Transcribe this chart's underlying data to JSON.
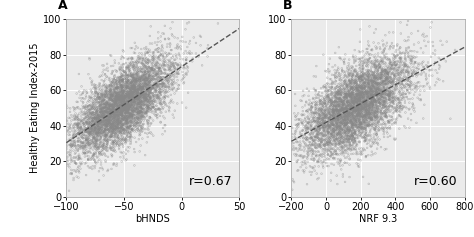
{
  "panel_A": {
    "label": "A",
    "xlabel": "bHNDS",
    "ylabel": "Healthy Eating Index-2015",
    "r_text": "r=0.67",
    "xlim": [
      -100,
      50
    ],
    "ylim": [
      0,
      100
    ],
    "xticks": [
      -100,
      -50,
      0,
      50
    ],
    "yticks": [
      0,
      20,
      40,
      60,
      80,
      100
    ],
    "x_mean": -52,
    "x_std": 22,
    "y_mean": 51,
    "y_std": 14,
    "n_points": 6000,
    "seed": 42,
    "corr": 0.67
  },
  "panel_B": {
    "label": "B",
    "xlabel": "NRF 9.3",
    "ylabel": "",
    "r_text": "r=0.60",
    "xlim": [
      -200,
      800
    ],
    "ylim": [
      0,
      100
    ],
    "xticks": [
      -200,
      0,
      200,
      400,
      600,
      800
    ],
    "yticks": [
      0,
      20,
      40,
      60,
      80,
      100
    ],
    "x_mean": 180,
    "x_std": 160,
    "y_mean": 51,
    "y_std": 14,
    "n_points": 6000,
    "seed": 99,
    "corr": 0.6
  },
  "point_color": "#888888",
  "point_size": 1.5,
  "point_alpha": 0.55,
  "line_color": "#555555",
  "line_style": "--",
  "line_width": 1.0,
  "bg_color": "#ffffff",
  "panel_bg": "#ebebeb",
  "r_fontsize": 9,
  "label_fontsize": 7,
  "tick_fontsize": 7,
  "panel_label_fontsize": 9
}
